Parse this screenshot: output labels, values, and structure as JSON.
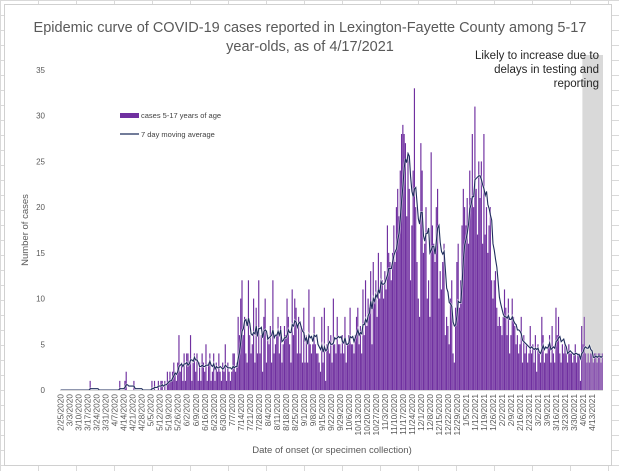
{
  "chart_data": {
    "type": "bar",
    "title": "Epidemic curve of COVID-19 cases reported in Lexington-Fayette County among 5-17 year-olds, as of 4/17/2021",
    "title_lines": [
      "Epidemic curve of COVID-19 cases reported in Lexington-Fayette County among 5-17",
      "year-olds, as of 4/17/2021"
    ],
    "xlabel": "Date of onset (or specimen collection)",
    "ylabel": "Number of cases",
    "ylim": [
      0,
      35
    ],
    "yticks": [
      0,
      5,
      10,
      15,
      20,
      25,
      30,
      35
    ],
    "grid": false,
    "start_date": "2/25/2020",
    "end_date": "4/17/2021",
    "xtick_labels": [
      "2/25/2020",
      "3/3/2020",
      "3/10/2020",
      "3/17/2020",
      "3/24/2020",
      "3/31/2020",
      "4/7/2020",
      "4/14/2020",
      "4/21/2020",
      "4/28/2020",
      "5/5/2020",
      "5/12/2020",
      "5/19/2020",
      "5/26/2020",
      "6/2/2020",
      "6/9/2020",
      "6/16/2020",
      "6/23/2020",
      "6/30/2020",
      "7/7/2020",
      "7/14/2020",
      "7/21/2020",
      "7/28/2020",
      "8/4/2020",
      "8/11/2020",
      "8/18/2020",
      "8/25/2020",
      "9/1/2020",
      "9/8/2020",
      "9/15/2020",
      "9/22/2020",
      "9/29/2020",
      "10/6/2020",
      "10/13/2020",
      "10/20/2020",
      "10/27/2020",
      "11/3/2020",
      "11/10/2020",
      "11/17/2020",
      "11/24/2020",
      "12/1/2020",
      "12/8/2020",
      "12/15/2020",
      "12/22/2020",
      "12/29/2020",
      "1/5/2021",
      "1/12/2021",
      "1/19/2021",
      "1/26/2021",
      "2/2/2021",
      "2/9/2021",
      "2/16/2021",
      "2/23/2021",
      "3/2/2021",
      "3/9/2021",
      "3/16/2021",
      "3/23/2021",
      "3/30/2021",
      "4/6/2021",
      "4/13/2021"
    ],
    "series": [
      {
        "name": "cases 5-17 years of age",
        "kind": "bar",
        "color": "#7030a0",
        "weekly_daily_values": [
          [
            0,
            0,
            0,
            0,
            0,
            0,
            0
          ],
          [
            0,
            0,
            0,
            0,
            0,
            0,
            0
          ],
          [
            0,
            0,
            0,
            0,
            0,
            0,
            0
          ],
          [
            0,
            0,
            1,
            0,
            0,
            0,
            0
          ],
          [
            0,
            0,
            0,
            0,
            0,
            0,
            0
          ],
          [
            0,
            0,
            0,
            0,
            0,
            0,
            0
          ],
          [
            0,
            0,
            0,
            0,
            1,
            0,
            0
          ],
          [
            0,
            1,
            2,
            0,
            0,
            0,
            0
          ],
          [
            0,
            1,
            0,
            0,
            0,
            0,
            0
          ],
          [
            0,
            0,
            0,
            0,
            0,
            0,
            0
          ],
          [
            0,
            1,
            0,
            1,
            0,
            0,
            1
          ],
          [
            0,
            1,
            1,
            0,
            1,
            0,
            2
          ],
          [
            1,
            2,
            1,
            2,
            3,
            2,
            1
          ],
          [
            3,
            6,
            2,
            3,
            1,
            4,
            1
          ],
          [
            4,
            4,
            3,
            6,
            1,
            3,
            4
          ],
          [
            2,
            4,
            1,
            3,
            1,
            4,
            3
          ],
          [
            2,
            5,
            1,
            3,
            4,
            1,
            2
          ],
          [
            4,
            1,
            3,
            2,
            4,
            2,
            1
          ],
          [
            3,
            2,
            5,
            1,
            3,
            2,
            1
          ],
          [
            2,
            4,
            4,
            2,
            3,
            8,
            6
          ],
          [
            10,
            12,
            6,
            8,
            4,
            3,
            12
          ],
          [
            6,
            4,
            5,
            10,
            3,
            9,
            4
          ],
          [
            12,
            4,
            6,
            2,
            8,
            10,
            3
          ],
          [
            6,
            5,
            7,
            3,
            12,
            4,
            5
          ],
          [
            6,
            8,
            4,
            7,
            3,
            5,
            7
          ],
          [
            6,
            10,
            8,
            5,
            3,
            11,
            6
          ],
          [
            10,
            9,
            4,
            8,
            4,
            7,
            3
          ],
          [
            9,
            3,
            6,
            3,
            11,
            5,
            4
          ],
          [
            5,
            8,
            5,
            4,
            4,
            3,
            2
          ],
          [
            8,
            3,
            9,
            1,
            5,
            7,
            4
          ],
          [
            6,
            3,
            10,
            5,
            4,
            8,
            5
          ],
          [
            5,
            4,
            6,
            4,
            8,
            3,
            5
          ],
          [
            6,
            9,
            5,
            5,
            4,
            6,
            8
          ],
          [
            9,
            5,
            7,
            4,
            11,
            6,
            12
          ],
          [
            7,
            10,
            9,
            13,
            5,
            14,
            10
          ],
          [
            12,
            8,
            15,
            10,
            14,
            12,
            10
          ],
          [
            13,
            11,
            18,
            15,
            14,
            12,
            15
          ],
          [
            18,
            14,
            20,
            22,
            19,
            24,
            28
          ],
          [
            29,
            28,
            27,
            19,
            26,
            22,
            12
          ],
          [
            18,
            24,
            33,
            20,
            14,
            10,
            8
          ],
          [
            27,
            24,
            15,
            16,
            20,
            10,
            12
          ],
          [
            8,
            26,
            18,
            16,
            14,
            20,
            22
          ],
          [
            10,
            13,
            11,
            14,
            16,
            6,
            8
          ],
          [
            7,
            5,
            10,
            12,
            4,
            3,
            9
          ],
          [
            14,
            16,
            9,
            12,
            18,
            22,
            20
          ],
          [
            18,
            21,
            16,
            24,
            21,
            28,
            20
          ],
          [
            31,
            22,
            17,
            25,
            21,
            25,
            16
          ],
          [
            28,
            17,
            20,
            15,
            18,
            20,
            12
          ],
          [
            10,
            12,
            13,
            9,
            7,
            8,
            7
          ],
          [
            6,
            8,
            11,
            9,
            6,
            10,
            4
          ],
          [
            6,
            10,
            8,
            7,
            5,
            6,
            4
          ],
          [
            5,
            8,
            3,
            6,
            4,
            5,
            3
          ],
          [
            4,
            7,
            4,
            5,
            3,
            6,
            2
          ],
          [
            5,
            4,
            3,
            8,
            6,
            3,
            4
          ],
          [
            4,
            5,
            6,
            3,
            7,
            4,
            3
          ],
          [
            9,
            6,
            8,
            4,
            3,
            5,
            4
          ],
          [
            5,
            4,
            3,
            5,
            4,
            4,
            3
          ],
          [
            4,
            5,
            3,
            4,
            4,
            1,
            7
          ],
          [
            5,
            8,
            4,
            3,
            4,
            3,
            4
          ],
          [
            4,
            3,
            4,
            4,
            3,
            4,
            4
          ],
          [
            3,
            4
          ]
        ]
      },
      {
        "name": "7 day moving average",
        "kind": "line",
        "color": "#1f2d5c"
      }
    ],
    "annotation": {
      "text_lines": [
        "Likely to increase due to",
        "delays in testing and",
        "reporting"
      ],
      "shaded_from_date": "4/6/2021",
      "shaded_color": "#d9d9d9"
    },
    "legend": {
      "placement": "top-left",
      "entries": [
        "cases 5-17 years of age",
        "7 day moving average"
      ]
    }
  }
}
